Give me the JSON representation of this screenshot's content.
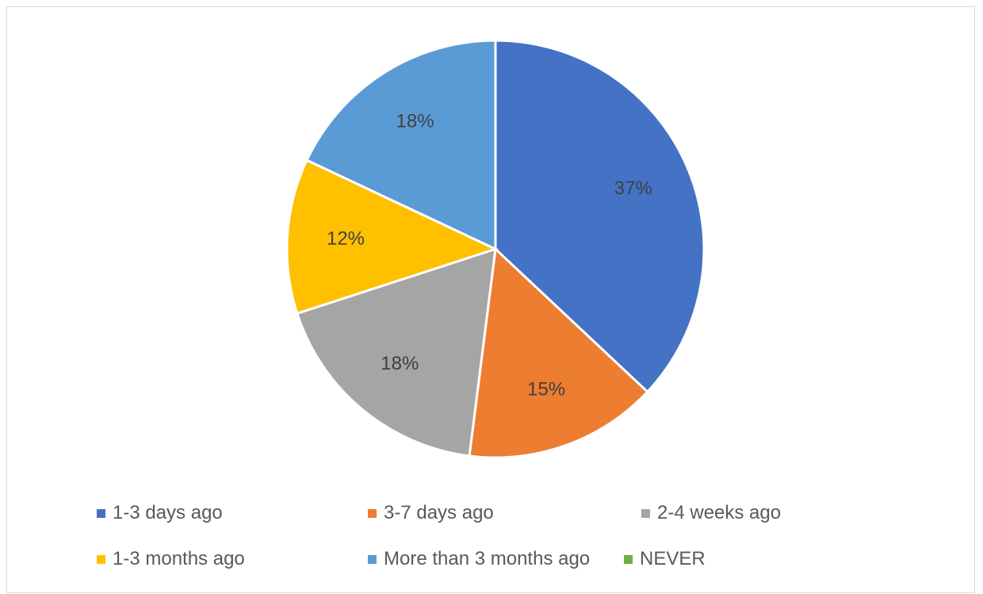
{
  "chart_data": {
    "type": "pie",
    "title": "",
    "categories": [
      "1-3 days ago",
      "3-7 days ago",
      "2-4 weeks ago",
      "1-3 months ago",
      "More than 3 months ago",
      "NEVER"
    ],
    "values": [
      37,
      15,
      18,
      12,
      18,
      0
    ],
    "data_labels": [
      "37%",
      "15%",
      "18%",
      "12%",
      "18%",
      ""
    ],
    "colors": [
      "#4472C4",
      "#ED7D31",
      "#A5A5A5",
      "#FFC000",
      "#5B9BD5",
      "#70AD47"
    ],
    "legend_position": "bottom"
  }
}
